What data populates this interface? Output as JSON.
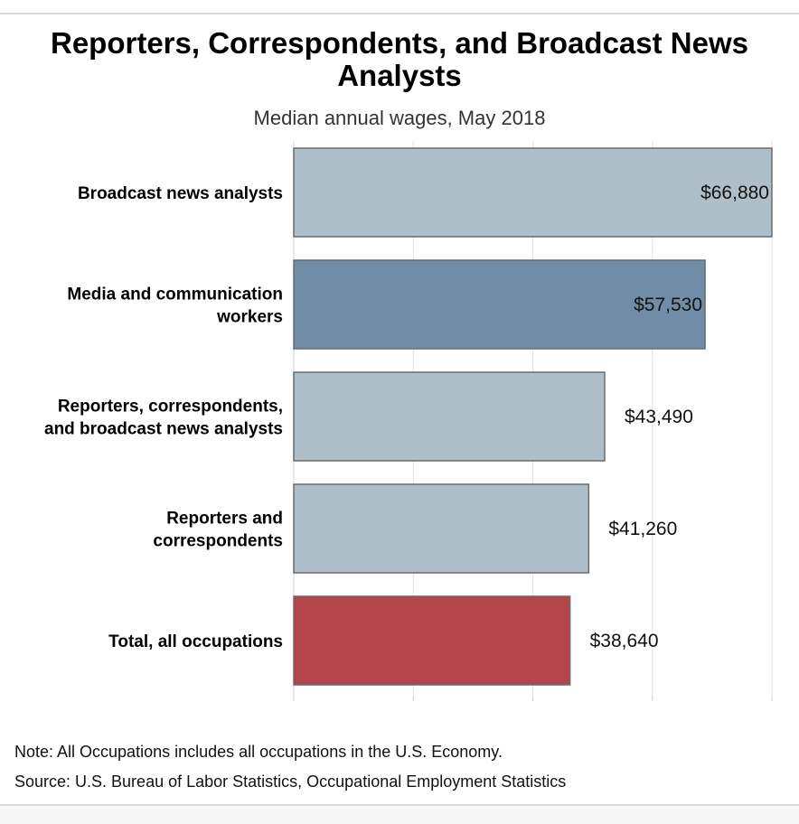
{
  "chart_data": {
    "type": "bar",
    "orientation": "horizontal",
    "title": "Reporters, Correspondents, and Broadcast News Analysts",
    "subtitle": "Median annual wages, May 2018",
    "categories": [
      [
        "Broadcast news analysts"
      ],
      [
        "Media and communication",
        "workers"
      ],
      [
        "Reporters, correspondents,",
        "and broadcast news analysts"
      ],
      [
        "Reporters and",
        "correspondents"
      ],
      [
        "Total, all occupations"
      ]
    ],
    "values": [
      66880,
      57530,
      43490,
      41260,
      38640
    ],
    "value_labels": [
      "$66,880",
      "$57,530",
      "$43,490",
      "$41,260",
      "$38,640"
    ],
    "bar_colors": [
      "#aebfc9",
      "#6f8da6",
      "#aebfc9",
      "#aebfc9",
      "#b5444a"
    ],
    "xlim": [
      0,
      66880
    ],
    "grid": true,
    "legend": "none"
  },
  "footer": {
    "note": "Note: All Occupations includes all occupations in the U.S. Economy.",
    "source": "Source: U.S. Bureau of Labor Statistics, Occupational Employment Statistics"
  }
}
